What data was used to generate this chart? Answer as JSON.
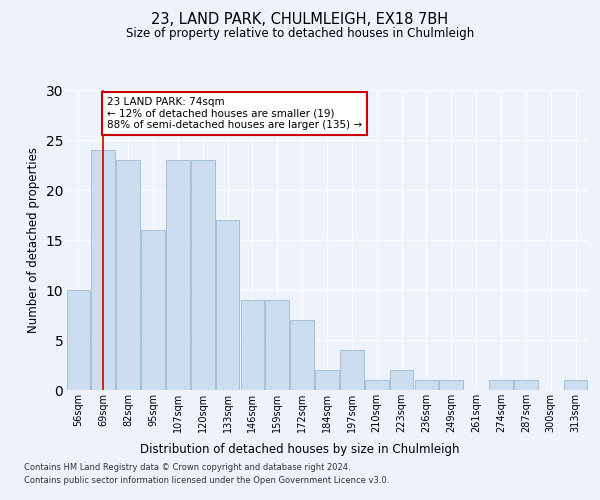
{
  "title": "23, LAND PARK, CHULMLEIGH, EX18 7BH",
  "subtitle": "Size of property relative to detached houses in Chulmleigh",
  "xlabel": "Distribution of detached houses by size in Chulmleigh",
  "ylabel": "Number of detached properties",
  "categories": [
    "56sqm",
    "69sqm",
    "82sqm",
    "95sqm",
    "107sqm",
    "120sqm",
    "133sqm",
    "146sqm",
    "159sqm",
    "172sqm",
    "184sqm",
    "197sqm",
    "210sqm",
    "223sqm",
    "236sqm",
    "249sqm",
    "261sqm",
    "274sqm",
    "287sqm",
    "300sqm",
    "313sqm"
  ],
  "values": [
    10,
    24,
    23,
    16,
    23,
    23,
    17,
    9,
    9,
    7,
    2,
    4,
    1,
    2,
    1,
    1,
    0,
    1,
    1,
    0,
    1
  ],
  "bar_color": "#ccddf0",
  "bar_edge_color": "#9abbd8",
  "vline_x": 1,
  "vline_color": "#cc0000",
  "annotation_text": "23 LAND PARK: 74sqm\n← 12% of detached houses are smaller (19)\n88% of semi-detached houses are larger (135) →",
  "annotation_box_color": "#ffffff",
  "annotation_box_edge": "#cc0000",
  "ylim": [
    0,
    30
  ],
  "yticks": [
    0,
    5,
    10,
    15,
    20,
    25,
    30
  ],
  "background_color": "#eef2fb",
  "grid_color": "#ffffff",
  "footer1": "Contains HM Land Registry data © Crown copyright and database right 2024.",
  "footer2": "Contains public sector information licensed under the Open Government Licence v3.0."
}
